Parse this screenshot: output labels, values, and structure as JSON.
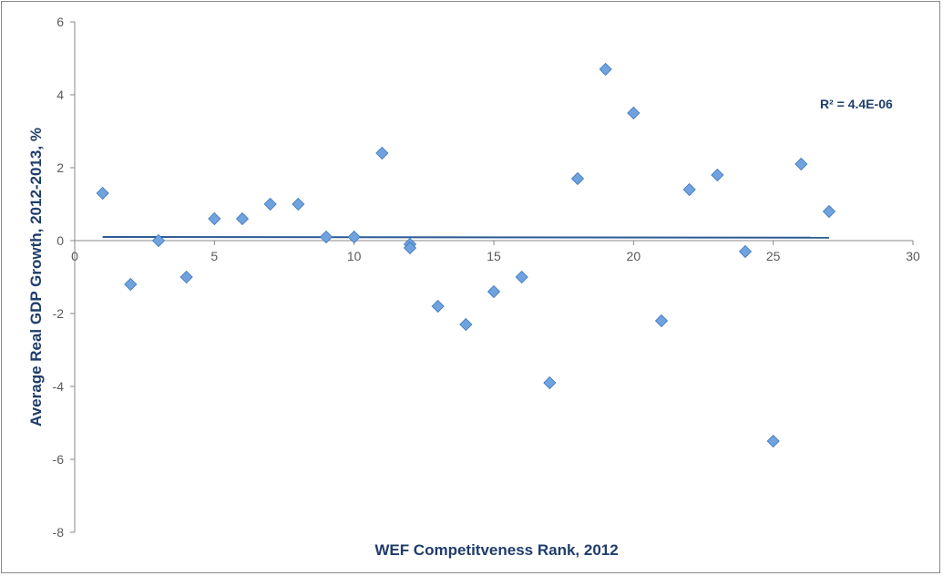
{
  "chart_data": {
    "type": "scatter",
    "xlabel": "WEF Competitveness Rank, 2012",
    "ylabel": "Average Real GDP Growth, 2012-2013, %",
    "xlim": [
      0,
      30
    ],
    "ylim": [
      -8,
      6
    ],
    "x_ticks": [
      "0",
      "5",
      "10",
      "15",
      "20",
      "25",
      "30"
    ],
    "y_ticks": [
      "-8",
      "-6",
      "-4",
      "-2",
      "0",
      "2",
      "4",
      "6"
    ],
    "grid": false,
    "marker": "diamond",
    "marker_color": "#6fa3e0",
    "trendline_color": "#2a5a94",
    "series": [
      {
        "points": [
          {
            "x": 1,
            "y": 1.3
          },
          {
            "x": 2,
            "y": -1.2
          },
          {
            "x": 3,
            "y": 0.0
          },
          {
            "x": 4,
            "y": -1.0
          },
          {
            "x": 5,
            "y": 0.6
          },
          {
            "x": 6,
            "y": 0.6
          },
          {
            "x": 7,
            "y": 1.0
          },
          {
            "x": 8,
            "y": 1.0
          },
          {
            "x": 9,
            "y": 0.1
          },
          {
            "x": 10,
            "y": 0.1
          },
          {
            "x": 11,
            "y": 2.4
          },
          {
            "x": 12,
            "y": -0.1
          },
          {
            "x": 12,
            "y": -0.2
          },
          {
            "x": 13,
            "y": -1.8
          },
          {
            "x": 14,
            "y": -2.3
          },
          {
            "x": 15,
            "y": -1.4
          },
          {
            "x": 16,
            "y": -1.0
          },
          {
            "x": 17,
            "y": -3.9
          },
          {
            "x": 18,
            "y": 1.7
          },
          {
            "x": 19,
            "y": 4.7
          },
          {
            "x": 20,
            "y": 3.5
          },
          {
            "x": 21,
            "y": -2.2
          },
          {
            "x": 22,
            "y": 1.4
          },
          {
            "x": 23,
            "y": 1.8
          },
          {
            "x": 24,
            "y": -0.3
          },
          {
            "x": 25,
            "y": -5.5
          },
          {
            "x": 26,
            "y": 2.1
          },
          {
            "x": 27,
            "y": 0.8
          }
        ]
      }
    ],
    "trendline": {
      "type": "linear",
      "x_range": [
        1,
        27
      ],
      "y_values": [
        0.1,
        0.08
      ],
      "label": "R² = 4.4E-06"
    }
  }
}
